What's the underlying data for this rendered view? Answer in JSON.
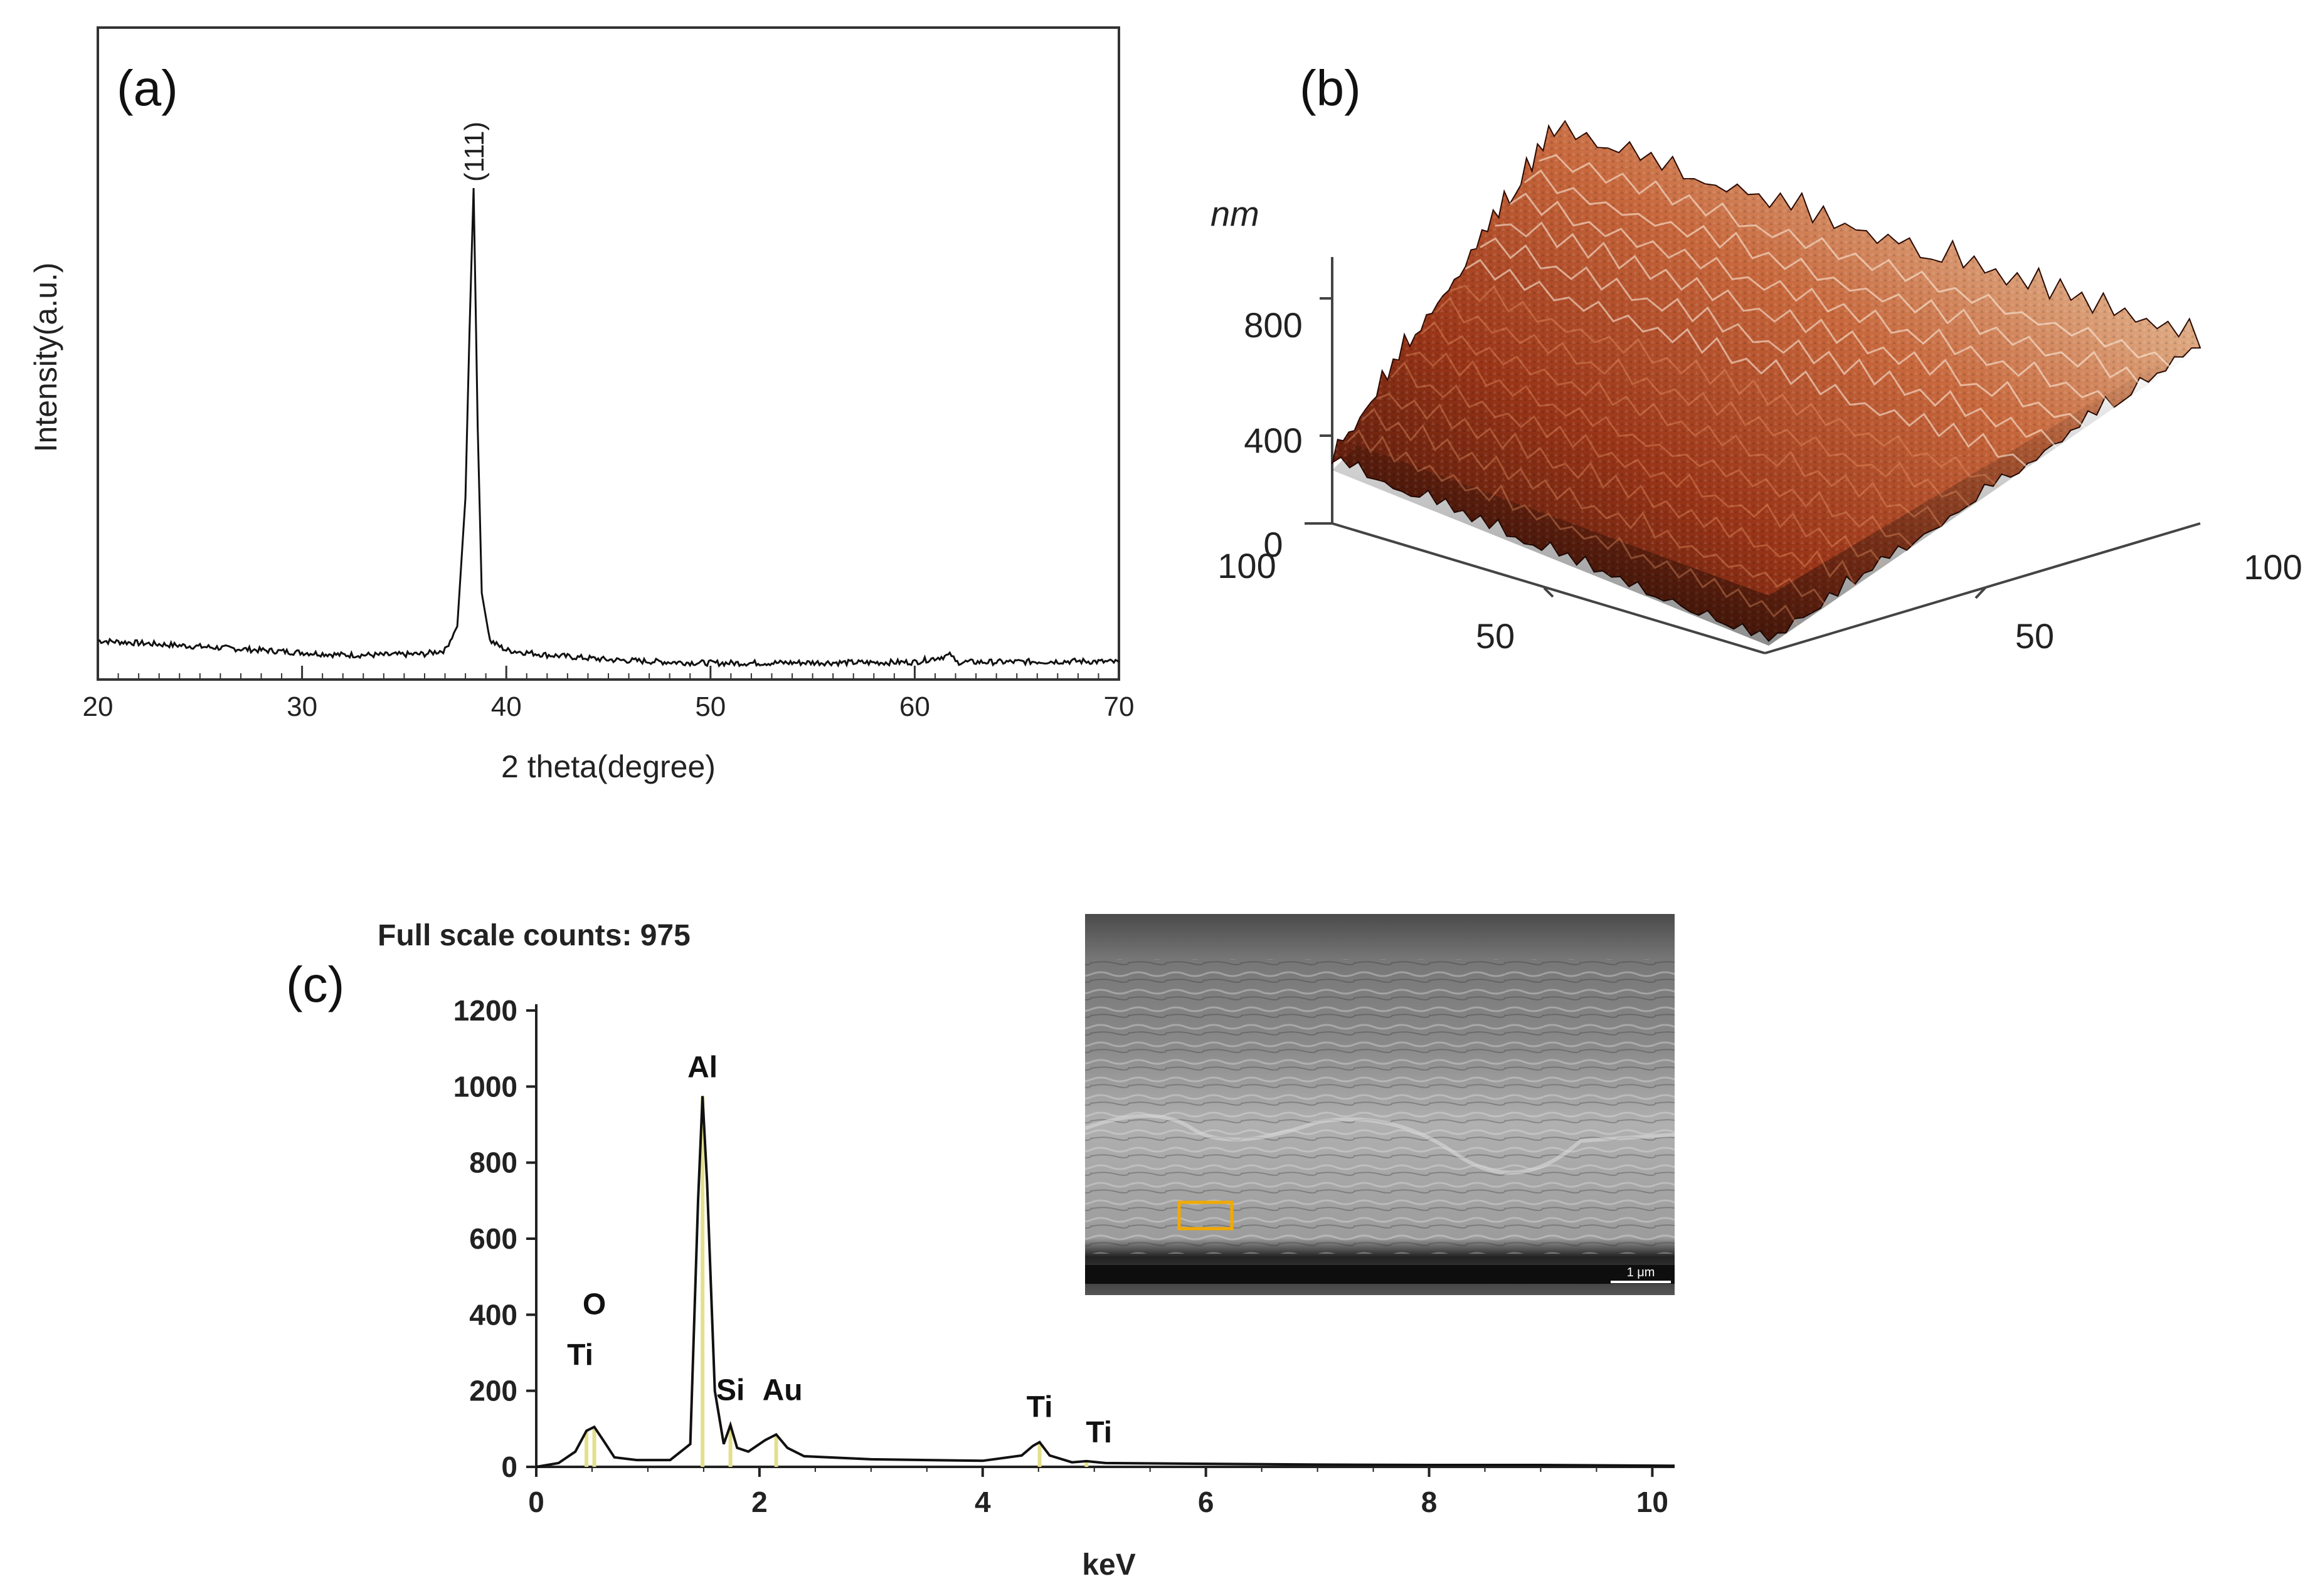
{
  "colors": {
    "trace": "#111111",
    "peak_marker": "#e3e08a",
    "sem_box": "#f2a900",
    "afm_dark": "#3a0e05",
    "afm_mid": "#b84a24",
    "afm_light": "#f1dcc0"
  },
  "chart_data": [
    {
      "panel": "(a)",
      "type": "line",
      "xlabel": "2 theta(degree)",
      "ylabel": "Intensity(a.u.)",
      "xlim": [
        20,
        70
      ],
      "xticks": [
        "20",
        "30",
        "40",
        "50",
        "60",
        "70"
      ],
      "y_ticks_labeled": false,
      "annotations": [
        {
          "text": "(111)",
          "x": 38.4
        }
      ],
      "x": [
        20,
        22,
        24,
        26,
        28,
        30,
        32,
        34,
        36,
        37,
        37.6,
        38,
        38.2,
        38.4,
        38.6,
        38.8,
        39.2,
        40,
        42,
        45,
        48,
        50,
        52,
        55,
        58,
        60,
        61.8,
        62,
        64,
        66,
        68,
        70
      ],
      "y": [
        0.05,
        0.045,
        0.04,
        0.035,
        0.03,
        0.025,
        0.02,
        0.02,
        0.022,
        0.03,
        0.08,
        0.35,
        0.7,
        1.0,
        0.5,
        0.15,
        0.05,
        0.03,
        0.02,
        0.01,
        0.005,
        0.003,
        0.003,
        0.004,
        0.004,
        0.005,
        0.02,
        0.005,
        0.005,
        0.006,
        0.007,
        0.005
      ]
    },
    {
      "panel": "(b)",
      "type": "heatmap",
      "description_units": "nm",
      "z_label": "nm",
      "z_ticks": [
        "0",
        "400",
        "800"
      ],
      "x_ticks": [
        "100",
        "50"
      ],
      "y_ticks": [
        "50",
        "100"
      ]
    },
    {
      "panel": "(c)",
      "type": "line",
      "header": "Full scale counts: 975",
      "xlabel": "keV",
      "xlim": [
        0,
        10.2
      ],
      "ylim": [
        0,
        1200
      ],
      "xticks": [
        "0",
        "2",
        "4",
        "6",
        "8",
        "10"
      ],
      "yticks": [
        "0",
        "200",
        "400",
        "600",
        "800",
        "1000",
        "1200"
      ],
      "peaks": [
        {
          "label": "O",
          "x": 0.52,
          "y": 105
        },
        {
          "label": "Ti",
          "x": 0.45,
          "y": 95
        },
        {
          "label": "Al",
          "x": 1.49,
          "y": 975
        },
        {
          "label": "Si",
          "x": 1.74,
          "y": 110
        },
        {
          "label": "Au",
          "x": 2.15,
          "y": 85
        },
        {
          "label": "Ti",
          "x": 4.51,
          "y": 65
        },
        {
          "label": "Ti",
          "x": 4.93,
          "y": 15
        }
      ],
      "x": [
        0,
        0.2,
        0.35,
        0.45,
        0.52,
        0.6,
        0.7,
        0.9,
        1.2,
        1.38,
        1.45,
        1.49,
        1.53,
        1.6,
        1.68,
        1.74,
        1.8,
        1.9,
        2.05,
        2.15,
        2.25,
        2.4,
        3.0,
        3.5,
        4.0,
        4.35,
        4.45,
        4.51,
        4.6,
        4.8,
        4.93,
        5.1,
        6.0,
        7.0,
        8.0,
        9.0,
        10.2
      ],
      "y": [
        0,
        10,
        40,
        95,
        105,
        70,
        25,
        18,
        18,
        60,
        700,
        975,
        750,
        200,
        60,
        110,
        50,
        40,
        70,
        85,
        50,
        28,
        20,
        18,
        16,
        30,
        55,
        65,
        30,
        12,
        15,
        10,
        8,
        6,
        5,
        5,
        3
      ]
    }
  ],
  "inset": {
    "name": "SEM cross-section micrograph",
    "scale_bar_text": "1 μm"
  }
}
